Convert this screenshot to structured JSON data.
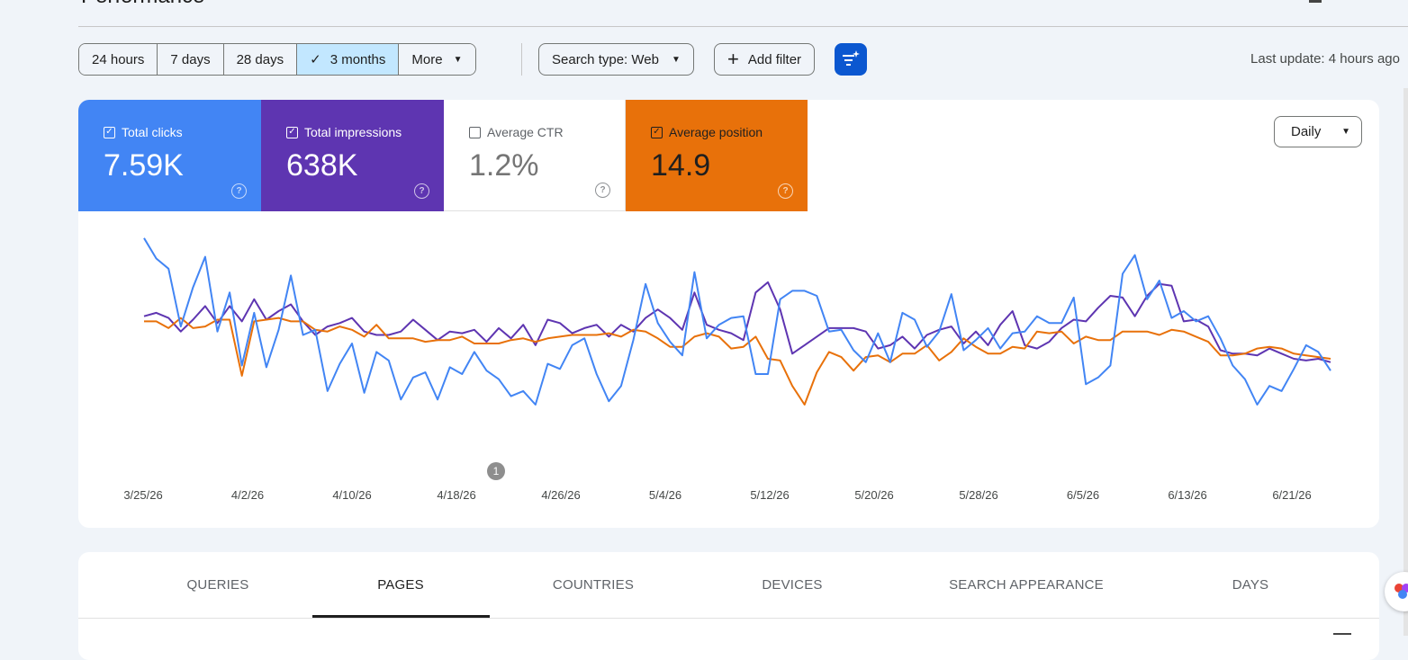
{
  "header": {
    "title": "Performance"
  },
  "toolbar": {
    "ranges": [
      {
        "label": "24 hours",
        "selected": false
      },
      {
        "label": "7 days",
        "selected": false
      },
      {
        "label": "28 days",
        "selected": false
      },
      {
        "label": "3 months",
        "selected": true
      },
      {
        "label": "More",
        "selected": false
      }
    ],
    "search_type": "Search type: Web",
    "add_filter": "Add filter",
    "last_update": "Last update: 4 hours ago"
  },
  "metrics": {
    "clicks": {
      "label": "Total clicks",
      "value": "7.59K",
      "checked": true,
      "color": "#4285f4"
    },
    "impressions": {
      "label": "Total impressions",
      "value": "638K",
      "checked": true,
      "color": "#5e35b1"
    },
    "ctr": {
      "label": "Average CTR",
      "value": "1.2%",
      "checked": false
    },
    "position": {
      "label": "Average position",
      "value": "14.9",
      "checked": true,
      "color": "#e8710a"
    }
  },
  "granularity": "Daily",
  "annotation_marker": "1",
  "chart_data": {
    "type": "line",
    "x_ticks": [
      "3/25/26",
      "4/2/26",
      "4/10/26",
      "4/18/26",
      "4/26/26",
      "5/4/26",
      "5/12/26",
      "5/20/26",
      "5/28/26",
      "6/5/26",
      "6/13/26",
      "6/21/26"
    ],
    "x_start": "3/25/26",
    "x_end": "6/23/26",
    "y_axis_labels": "hidden",
    "grid": false,
    "series": [
      {
        "name": "Total clicks",
        "color": "#4285f4",
        "values": [
          0.98,
          0.86,
          0.8,
          0.46,
          0.69,
          0.87,
          0.43,
          0.66,
          0.23,
          0.54,
          0.22,
          0.44,
          0.76,
          0.41,
          0.44,
          0.08,
          0.24,
          0.36,
          0.07,
          0.31,
          0.26,
          0.03,
          0.16,
          0.19,
          0.03,
          0.22,
          0.18,
          0.31,
          0.2,
          0.15,
          0.05,
          0.08,
          0.0,
          0.24,
          0.21,
          0.35,
          0.39,
          0.18,
          0.02,
          0.11,
          0.38,
          0.71,
          0.48,
          0.37,
          0.29,
          0.78,
          0.39,
          0.47,
          0.51,
          0.52,
          0.18,
          0.18,
          0.62,
          0.67,
          0.67,
          0.64,
          0.43,
          0.44,
          0.32,
          0.25,
          0.42,
          0.25,
          0.54,
          0.5,
          0.34,
          0.43,
          0.65,
          0.32,
          0.38,
          0.45,
          0.33,
          0.42,
          0.43,
          0.52,
          0.48,
          0.48,
          0.63,
          0.12,
          0.16,
          0.23,
          0.77,
          0.88,
          0.62,
          0.73,
          0.51,
          0.55,
          0.49,
          0.52,
          0.39,
          0.23,
          0.15,
          0.0,
          0.11,
          0.08,
          0.21,
          0.35,
          0.31,
          0.2
        ]
      },
      {
        "name": "Total impressions",
        "color": "#5e35b1",
        "values": [
          0.52,
          0.54,
          0.51,
          0.43,
          0.5,
          0.58,
          0.48,
          0.58,
          0.49,
          0.62,
          0.5,
          0.55,
          0.59,
          0.49,
          0.41,
          0.46,
          0.48,
          0.51,
          0.43,
          0.41,
          0.41,
          0.43,
          0.5,
          0.44,
          0.38,
          0.43,
          0.42,
          0.44,
          0.37,
          0.45,
          0.39,
          0.47,
          0.35,
          0.5,
          0.48,
          0.42,
          0.45,
          0.47,
          0.4,
          0.47,
          0.43,
          0.51,
          0.56,
          0.51,
          0.44,
          0.66,
          0.47,
          0.44,
          0.42,
          0.38,
          0.66,
          0.72,
          0.56,
          0.3,
          0.35,
          0.4,
          0.45,
          0.45,
          0.45,
          0.43,
          0.33,
          0.35,
          0.4,
          0.33,
          0.41,
          0.44,
          0.46,
          0.36,
          0.43,
          0.35,
          0.47,
          0.55,
          0.35,
          0.33,
          0.37,
          0.45,
          0.5,
          0.49,
          0.57,
          0.64,
          0.63,
          0.52,
          0.64,
          0.71,
          0.7,
          0.49,
          0.5,
          0.46,
          0.32,
          0.3,
          0.3,
          0.29,
          0.33,
          0.3,
          0.27,
          0.26,
          0.27,
          0.25
        ]
      },
      {
        "name": "Average position",
        "color": "#e8710a",
        "values": [
          0.49,
          0.49,
          0.45,
          0.51,
          0.45,
          0.46,
          0.5,
          0.5,
          0.17,
          0.49,
          0.5,
          0.51,
          0.49,
          0.49,
          0.44,
          0.43,
          0.46,
          0.44,
          0.4,
          0.47,
          0.39,
          0.39,
          0.39,
          0.37,
          0.38,
          0.38,
          0.4,
          0.36,
          0.36,
          0.36,
          0.38,
          0.39,
          0.37,
          0.39,
          0.4,
          0.41,
          0.41,
          0.41,
          0.42,
          0.4,
          0.44,
          0.43,
          0.39,
          0.34,
          0.34,
          0.4,
          0.42,
          0.4,
          0.33,
          0.34,
          0.4,
          0.27,
          0.26,
          0.11,
          0.0,
          0.19,
          0.31,
          0.28,
          0.2,
          0.28,
          0.29,
          0.25,
          0.3,
          0.3,
          0.35,
          0.26,
          0.31,
          0.39,
          0.34,
          0.3,
          0.3,
          0.34,
          0.33,
          0.43,
          0.42,
          0.43,
          0.36,
          0.4,
          0.38,
          0.38,
          0.43,
          0.43,
          0.43,
          0.41,
          0.44,
          0.43,
          0.4,
          0.37,
          0.29,
          0.29,
          0.3,
          0.33,
          0.34,
          0.33,
          0.3,
          0.29,
          0.28,
          0.27
        ]
      }
    ]
  },
  "tabs": [
    {
      "label": "Queries",
      "active": false
    },
    {
      "label": "Pages",
      "active": true
    },
    {
      "label": "Countries",
      "active": false
    },
    {
      "label": "Devices",
      "active": false
    },
    {
      "label": "Search appearance",
      "active": false
    },
    {
      "label": "Days",
      "active": false
    }
  ]
}
